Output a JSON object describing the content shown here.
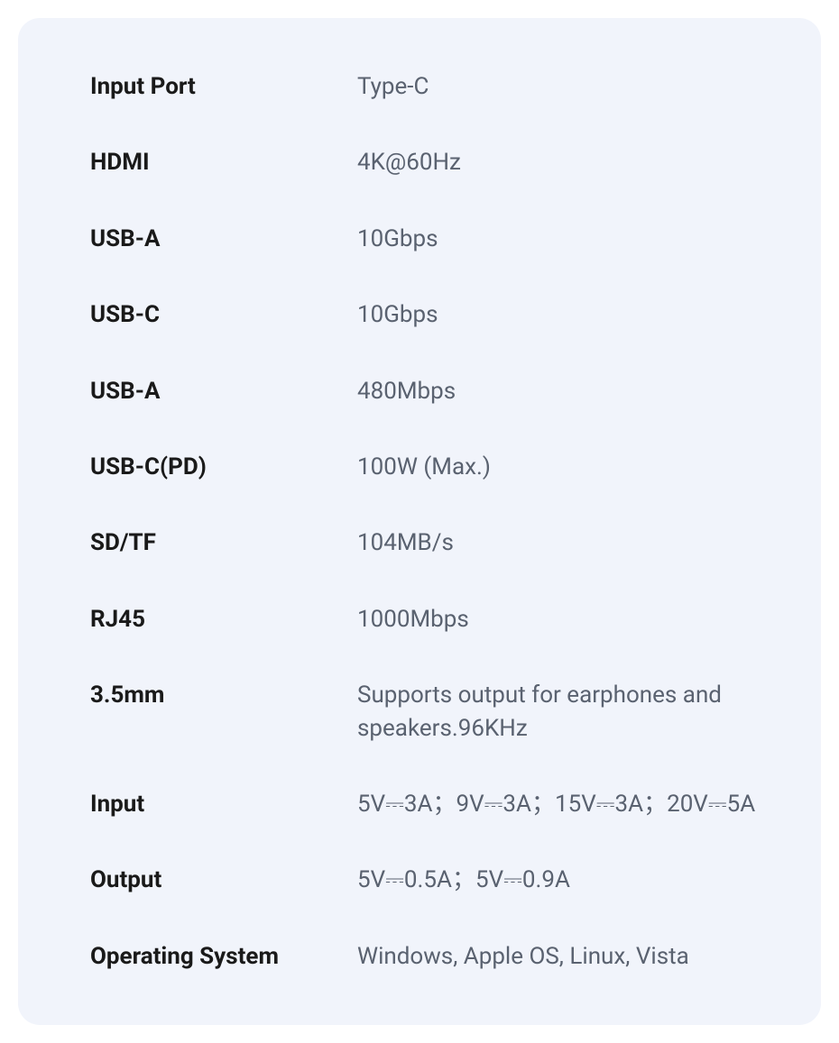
{
  "specs": {
    "rows": [
      {
        "label": "Input Port",
        "value": "Type-C"
      },
      {
        "label": "HDMI",
        "value": "4K@60Hz"
      },
      {
        "label": "USB-A",
        "value": "10Gbps"
      },
      {
        "label": "USB-C",
        "value": "10Gbps"
      },
      {
        "label": "USB-A",
        "value": "480Mbps"
      },
      {
        "label": "USB-C(PD)",
        "value": "100W (Max.)"
      },
      {
        "label": "SD/TF",
        "value": "104MB/s"
      },
      {
        "label": "RJ45",
        "value": "1000Mbps"
      },
      {
        "label": "3.5mm",
        "value": "Supports output for earphones and speakers.96KHz"
      },
      {
        "label": "Input",
        "value": "5V⎓3A；9V⎓3A；15V⎓3A；20V⎓5A"
      },
      {
        "label": "Output",
        "value": "5V⎓0.5A；5V⎓0.9A"
      },
      {
        "label": "Operating System",
        "value": "Windows, Apple OS, Linux, Vista"
      }
    ]
  },
  "styling": {
    "card_background": "#f1f4fb",
    "label_color": "#1a1a1a",
    "value_color": "#5a6270",
    "label_fontsize": 26,
    "value_fontsize": 26,
    "label_fontweight": 700,
    "value_fontweight": 400,
    "border_radius": 24,
    "row_spacing": 48,
    "label_width": 296
  }
}
